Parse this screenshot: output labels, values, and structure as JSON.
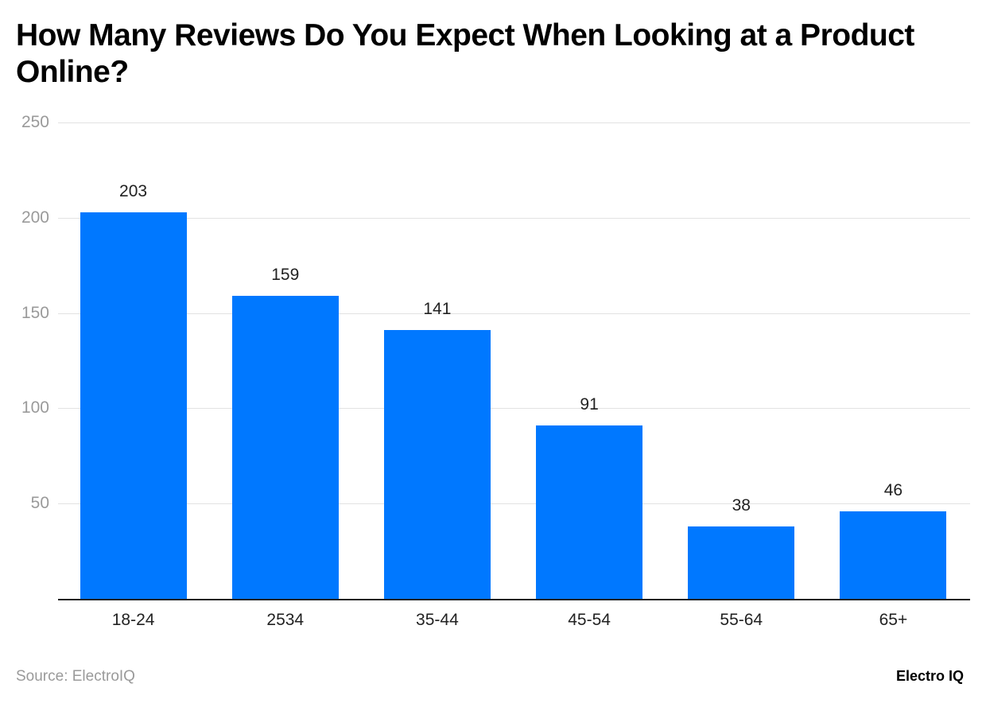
{
  "title": "How Many Reviews Do You Expect When Looking at a Product Online?",
  "footer": {
    "source": "Source: ElectroIQ",
    "brand": "Electro IQ"
  },
  "colors": {
    "bar": "#0078ff",
    "grid": "#e2e2e2",
    "axis": "#222222"
  },
  "chart_data": {
    "type": "bar",
    "title": "How Many Reviews Do You Expect When Looking at a Product Online?",
    "categories": [
      "18-24",
      "2534",
      "35-44",
      "45-54",
      "55-64",
      "65+"
    ],
    "values": [
      203,
      159,
      141,
      91,
      38,
      46
    ],
    "xlabel": "",
    "ylabel": "",
    "ylim": [
      0,
      250
    ],
    "yticks": [
      50,
      100,
      150,
      200,
      250
    ],
    "grid": true,
    "legend": null,
    "data_labels": [
      "203",
      "159",
      "141",
      "91",
      "38",
      "46"
    ]
  }
}
